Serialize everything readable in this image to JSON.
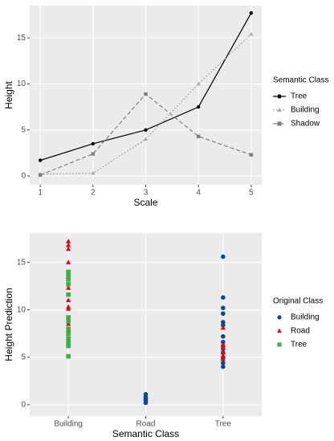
{
  "chart_data": [
    {
      "type": "line",
      "x_label": "Scale",
      "y_label": "Height",
      "x": [
        1,
        2,
        3,
        4,
        5
      ],
      "xlim": [
        0.8,
        5.2
      ],
      "xticks": [
        1,
        2,
        3,
        4,
        5
      ],
      "ylim": [
        -0.95,
        18.5
      ],
      "yticks": [
        0,
        5,
        10,
        15
      ],
      "grid": true,
      "legend_title": "Semantic Class",
      "legend": "right",
      "series": [
        {
          "name": "Tree",
          "color": "#000000",
          "dash": "solid",
          "marker": "circle",
          "values": [
            1.7,
            3.5,
            5.0,
            7.5,
            17.7
          ]
        },
        {
          "name": "Building",
          "color": "#a6a6a6",
          "dash": "dotted",
          "marker": "triangle",
          "values": [
            0.2,
            0.3,
            4.0,
            10.0,
            15.4
          ]
        },
        {
          "name": "Shadow",
          "color": "#7f7f7f",
          "dash": "dashed",
          "marker": "square",
          "values": [
            0.1,
            2.4,
            8.9,
            4.3,
            2.3
          ]
        }
      ]
    },
    {
      "type": "scatter",
      "x_label": "Semantic Class",
      "y_label": "Height Prediction",
      "categories": [
        "Building",
        "Road",
        "Tree"
      ],
      "ylim": [
        -1.2,
        18.1
      ],
      "yticks": [
        0,
        5,
        10,
        15
      ],
      "grid": true,
      "legend_title": "Original Class",
      "legend": "right",
      "series": [
        {
          "name": "Building",
          "color": "#0d4a8a",
          "marker": "circle",
          "x": [
            "Road",
            "Road",
            "Road",
            "Road",
            "Road",
            "Tree",
            "Tree",
            "Tree",
            "Tree",
            "Tree",
            "Tree",
            "Tree",
            "Tree",
            "Tree",
            "Tree",
            "Tree",
            "Tree",
            "Tree",
            "Tree"
          ],
          "values": [
            1.1,
            0.8,
            0.6,
            0.4,
            0.2,
            15.6,
            11.3,
            10.2,
            9.6,
            8.7,
            8.4,
            7.2,
            6.6,
            6.2,
            5.9,
            5.5,
            4.9,
            4.4,
            4.0
          ]
        },
        {
          "name": "Road",
          "color": "#e8000b",
          "marker": "triangle",
          "x": [
            "Building",
            "Building",
            "Building",
            "Building",
            "Building",
            "Building",
            "Building",
            "Building",
            "Building",
            "Building",
            "Building",
            "Tree",
            "Tree",
            "Tree",
            "Tree",
            "Tree",
            "Tree"
          ],
          "values": [
            17.2,
            16.8,
            16.4,
            15.0,
            13.5,
            12.3,
            11.0,
            10.3,
            10.1,
            8.5,
            7.9,
            8.1,
            6.3,
            6.0,
            5.5,
            5.2,
            4.8
          ]
        },
        {
          "name": "Tree",
          "color": "#3cb043",
          "marker": "square",
          "x": [
            "Building",
            "Building",
            "Building",
            "Building",
            "Building",
            "Building",
            "Building",
            "Building",
            "Building",
            "Building",
            "Building",
            "Building",
            "Building"
          ],
          "values": [
            14.0,
            13.6,
            13.2,
            12.7,
            11.6,
            9.2,
            8.8,
            8.0,
            7.5,
            7.0,
            6.6,
            6.2,
            5.1
          ]
        }
      ]
    }
  ]
}
